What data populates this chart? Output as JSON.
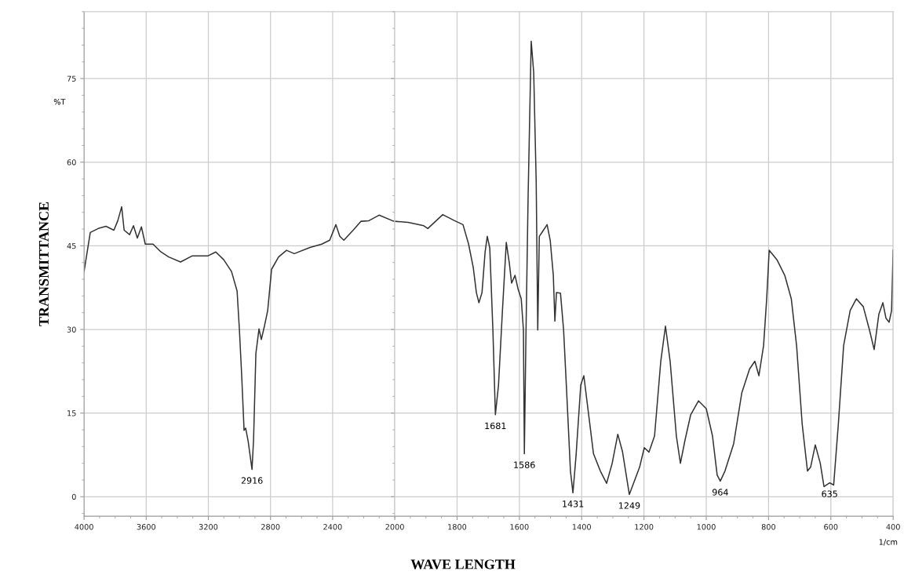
{
  "chart_data": [
    {
      "type": "line",
      "ylabel": "TRANSMITTANCE",
      "xlim": [
        4000,
        2000
      ],
      "xticks": [
        4000,
        3600,
        3200,
        2800,
        2400,
        2000
      ],
      "ylim": [
        -3.5,
        87
      ],
      "yticks": [
        0,
        15,
        30,
        45,
        60,
        75
      ],
      "grid": true,
      "marker": "none",
      "line_style": "solid",
      "series": [
        {
          "color": "#333333",
          "x": [
            4000,
            3960,
            3909,
            3859,
            3808,
            3783,
            3758,
            3742,
            3707,
            3682,
            3657,
            3631,
            3606,
            3556,
            3505,
            3455,
            3379,
            3303,
            3202,
            3152,
            3101,
            3051,
            3015,
            3000,
            2985,
            2970,
            2960,
            2944,
            2919,
            2909,
            2894,
            2874,
            2859,
            2839,
            2818,
            2793,
            2748,
            2697,
            2647,
            2546,
            2470,
            2419,
            2379,
            2354,
            2328,
            2268,
            2217,
            2167,
            2101,
            2015,
            2000
          ],
          "values": [
            40.4,
            47.4,
            48.1,
            48.5,
            47.8,
            49.5,
            52.0,
            47.8,
            47.0,
            48.6,
            46.4,
            48.4,
            45.3,
            45.3,
            43.9,
            43.0,
            42.1,
            43.2,
            43.2,
            43.9,
            42.5,
            40.4,
            36.9,
            29.9,
            21.5,
            11.9,
            12.3,
            10.0,
            4.9,
            10.2,
            25.7,
            30.1,
            28.2,
            30.6,
            33.4,
            40.8,
            43.0,
            44.2,
            43.6,
            44.7,
            45.3,
            46.0,
            48.8,
            46.7,
            46.0,
            47.8,
            49.4,
            49.5,
            50.5,
            49.5,
            49.4
          ]
        }
      ],
      "annotations": [
        "%T",
        {
          "text": "2916",
          "x": 2919,
          "y": 4.9
        }
      ]
    },
    {
      "type": "line",
      "xlabel": "WAVE LENGTH",
      "tick_labels": "x",
      "xlim": [
        2000,
        400
      ],
      "xticks": [
        1800,
        1600,
        1400,
        1200,
        1000,
        800,
        600,
        400
      ],
      "ylim": [
        -3.5,
        87
      ],
      "yticks": [
        0,
        15,
        30,
        45,
        60,
        75
      ],
      "grid": true,
      "marker": "none",
      "line_style": "solid",
      "series": [
        {
          "color": "#333333",
          "x": [
            2000,
            1957,
            1907,
            1894,
            1869,
            1846,
            1808,
            1781,
            1763,
            1748,
            1738,
            1730,
            1720,
            1710,
            1703,
            1695,
            1685,
            1677,
            1667,
            1655,
            1642,
            1632,
            1625,
            1614,
            1604,
            1594,
            1587,
            1584,
            1579,
            1572,
            1562,
            1554,
            1546,
            1541,
            1536,
            1524,
            1511,
            1501,
            1491,
            1486,
            1481,
            1468,
            1458,
            1448,
            1436,
            1428,
            1418,
            1403,
            1393,
            1380,
            1362,
            1340,
            1320,
            1302,
            1284,
            1269,
            1247,
            1214,
            1199,
            1184,
            1166,
            1146,
            1131,
            1116,
            1096,
            1083,
            1068,
            1050,
            1025,
            1000,
            980,
            965,
            955,
            940,
            912,
            886,
            861,
            844,
            831,
            816,
            806,
            798,
            773,
            748,
            727,
            710,
            692,
            675,
            665,
            650,
            634,
            622,
            604,
            591,
            576,
            559,
            538,
            518,
            496,
            476,
            461,
            446,
            433,
            423,
            413,
            405,
            400
          ],
          "values": [
            49.4,
            49.2,
            48.6,
            48.1,
            49.4,
            50.6,
            49.5,
            48.8,
            45.3,
            41.1,
            36.6,
            34.8,
            36.6,
            43.9,
            46.7,
            44.6,
            29.9,
            14.7,
            20.0,
            32.7,
            45.6,
            41.8,
            38.3,
            39.7,
            37.2,
            35.5,
            29.9,
            7.7,
            28.5,
            53.7,
            81.7,
            76.1,
            56.5,
            29.9,
            46.7,
            47.7,
            48.8,
            46.0,
            39.7,
            31.5,
            36.6,
            36.5,
            29.9,
            18.6,
            4.6,
            0.7,
            7.4,
            20.0,
            21.7,
            15.8,
            7.7,
            4.6,
            2.4,
            6.0,
            11.2,
            8.1,
            0.4,
            5.3,
            8.8,
            8.0,
            10.9,
            24.3,
            30.6,
            24.3,
            10.9,
            6.0,
            10.2,
            14.7,
            17.2,
            15.8,
            10.9,
            3.9,
            2.8,
            4.6,
            9.5,
            18.6,
            22.9,
            24.3,
            21.7,
            27.1,
            35.5,
            44.2,
            42.5,
            39.7,
            35.5,
            27.1,
            13.0,
            4.6,
            5.3,
            9.3,
            6.0,
            1.8,
            2.5,
            2.1,
            13.0,
            27.1,
            33.4,
            35.5,
            34.1,
            29.9,
            26.4,
            32.7,
            34.8,
            32.0,
            31.3,
            33.4,
            44.2
          ]
        }
      ],
      "annotations": [
        "1/cm",
        {
          "text": "1681",
          "x": 1677,
          "y": 14.7
        },
        {
          "text": "1586",
          "x": 1584,
          "y": 7.7
        },
        {
          "text": "1431",
          "x": 1428,
          "y": 0.7
        },
        {
          "text": "1249",
          "x": 1247,
          "y": 0.4
        },
        {
          "text": "964",
          "x": 955,
          "y": 2.8
        },
        {
          "text": "635",
          "x": 604,
          "y": 2.5
        }
      ]
    }
  ]
}
